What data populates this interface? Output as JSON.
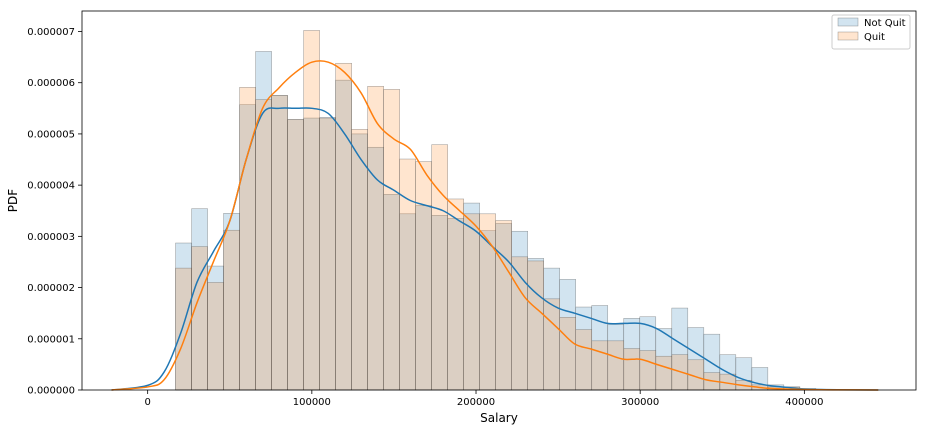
{
  "chart_data": {
    "type": "bar",
    "xlabel": "Salary",
    "ylabel": "PDF",
    "xlim": [
      -40000,
      468000
    ],
    "ylim": [
      0,
      7.4e-06
    ],
    "x_ticks": [
      0,
      100000,
      200000,
      300000,
      400000
    ],
    "x_tick_labels": [
      "0",
      "100000",
      "200000",
      "300000",
      "400000"
    ],
    "y_ticks": [
      0,
      1e-06,
      2e-06,
      3e-06,
      4e-06,
      5e-06,
      6e-06,
      7e-06
    ],
    "y_tick_labels": [
      "0.000000",
      "0.000001",
      "0.000002",
      "0.000003",
      "0.000004",
      "0.000005",
      "0.000006",
      "0.000007"
    ],
    "grid": false,
    "legend_position": "top-right",
    "series": [
      {
        "name": "Not Quit",
        "color": "#1f77b4",
        "bin_start": 17000,
        "bin_width": 9750,
        "values": [
          2.87e-06,
          3.54e-06,
          2.42e-06,
          3.45e-06,
          5.57e-06,
          6.61e-06,
          5.75e-06,
          5.28e-06,
          5.31e-06,
          5.32e-06,
          6.05e-06,
          5e-06,
          4.74e-06,
          3.82e-06,
          3.44e-06,
          3.6e-06,
          3.41e-06,
          3.35e-06,
          3.65e-06,
          3.11e-06,
          3.25e-06,
          3.1e-06,
          2.57e-06,
          2.38e-06,
          2.16e-06,
          1.62e-06,
          1.65e-06,
          1.28e-06,
          1.4e-06,
          1.43e-06,
          1.2e-06,
          1.6e-06,
          1.22e-06,
          1.09e-06,
          6.9e-07,
          6.3e-07,
          4.4e-07,
          1e-07,
          6e-08,
          3e-08
        ]
      },
      {
        "name": "Quit",
        "color": "#ff7f0e",
        "bin_start": 17000,
        "bin_width": 9750,
        "values": [
          2.38e-06,
          2.8e-06,
          2.1e-06,
          3.12e-06,
          5.91e-06,
          5.67e-06,
          5.75e-06,
          5.28e-06,
          7.02e-06,
          5.31e-06,
          6.38e-06,
          5.09e-06,
          5.93e-06,
          5.87e-06,
          4.51e-06,
          4.46e-06,
          4.79e-06,
          3.73e-06,
          3.44e-06,
          3.44e-06,
          3.31e-06,
          2.6e-06,
          2.52e-06,
          1.78e-06,
          1.42e-06,
          1.18e-06,
          9.6e-07,
          9.6e-07,
          8.1e-07,
          7.7e-07,
          6.6e-07,
          6.9e-07,
          5.9e-07,
          3.4e-07,
          3.1e-07,
          1.9e-07,
          1e-07,
          6e-08,
          6e-08,
          2e-08
        ]
      }
    ],
    "kde": [
      {
        "name": "Not Quit",
        "color": "#1f77b4",
        "x": [
          -22000,
          0,
          10000,
          20000,
          30000,
          40000,
          50000,
          60000,
          70000,
          80000,
          90000,
          100000,
          110000,
          120000,
          130000,
          140000,
          150000,
          160000,
          170000,
          180000,
          190000,
          200000,
          210000,
          220000,
          230000,
          240000,
          250000,
          260000,
          270000,
          280000,
          290000,
          300000,
          310000,
          320000,
          330000,
          340000,
          350000,
          360000,
          370000,
          380000,
          390000,
          400000,
          420000,
          445000
        ],
        "y": [
          0,
          9e-08,
          3.5e-07,
          1.1e-06,
          2.1e-06,
          2.7e-06,
          3.3e-06,
          4.5e-06,
          5.4e-06,
          5.5e-06,
          5.5e-06,
          5.5e-06,
          5.4e-06,
          5e-06,
          4.5e-06,
          4.1e-06,
          3.9e-06,
          3.7e-06,
          3.6e-06,
          3.5e-06,
          3.3e-06,
          3.1e-06,
          2.8e-06,
          2.5e-06,
          2.1e-06,
          1.8e-06,
          1.6e-06,
          1.5e-06,
          1.4e-06,
          1.3e-06,
          1.3e-06,
          1.3e-06,
          1.2e-06,
          1e-06,
          8e-07,
          6e-07,
          4e-07,
          2.4e-07,
          1.4e-07,
          8e-08,
          5e-08,
          2e-08,
          5e-09,
          0
        ]
      },
      {
        "name": "Quit",
        "color": "#ff7f0e",
        "x": [
          -22000,
          0,
          10000,
          20000,
          30000,
          40000,
          50000,
          60000,
          70000,
          80000,
          90000,
          100000,
          110000,
          120000,
          130000,
          140000,
          150000,
          160000,
          170000,
          180000,
          190000,
          200000,
          210000,
          220000,
          230000,
          240000,
          250000,
          260000,
          270000,
          280000,
          290000,
          300000,
          310000,
          320000,
          330000,
          340000,
          350000,
          360000,
          370000,
          380000,
          400000,
          420000,
          445000
        ],
        "y": [
          0,
          6e-08,
          2e-07,
          8e-07,
          1.7e-06,
          2.5e-06,
          3.3e-06,
          4.5e-06,
          5.5e-06,
          5.9e-06,
          6.2e-06,
          6.4e-06,
          6.4e-06,
          6.2e-06,
          5.8e-06,
          5.2e-06,
          4.9e-06,
          4.7e-06,
          4.2e-06,
          3.8e-06,
          3.5e-06,
          3.2e-06,
          2.8e-06,
          2.3e-06,
          1.8e-06,
          1.5e-06,
          1.2e-06,
          9e-07,
          8e-07,
          7e-07,
          6e-07,
          6e-07,
          5e-07,
          4e-07,
          3e-07,
          2e-07,
          1.5e-07,
          1e-07,
          6e-08,
          3e-08,
          1e-08,
          3e-09,
          0
        ]
      }
    ]
  }
}
